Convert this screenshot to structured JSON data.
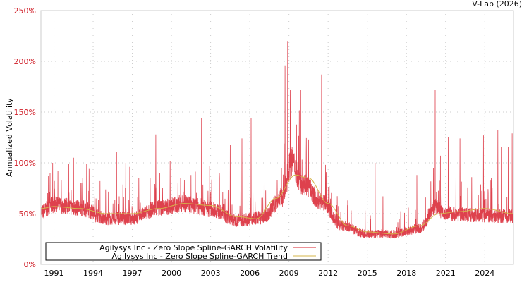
{
  "chart_data": {
    "type": "line",
    "title": "",
    "source_label": "V-Lab (2026)",
    "xlabel": "",
    "ylabel": "Annualized Volatility",
    "xlim": [
      1990.0,
      2026.2
    ],
    "ylim": [
      0,
      250
    ],
    "x_ticks": [
      "1991",
      "1994",
      "1997",
      "2000",
      "2003",
      "2006",
      "2009",
      "2012",
      "2015",
      "2018",
      "2021",
      "2024"
    ],
    "y_ticks": [
      0,
      50,
      100,
      150,
      200,
      250
    ],
    "y_tick_labels": [
      "0%",
      "50%",
      "100%",
      "150%",
      "200%",
      "250%"
    ],
    "grid": true,
    "legend_position": "bottom-left",
    "series": [
      {
        "name": "Agilysys Inc - Zero Slope Spline-GARCH Volatility",
        "color": "#d8202e",
        "baseline": [
          [
            1990.0,
            50
          ],
          [
            1991.0,
            57
          ],
          [
            1993.0,
            54
          ],
          [
            1995.0,
            44
          ],
          [
            1997.0,
            44
          ],
          [
            1999.0,
            54
          ],
          [
            2001.0,
            58
          ],
          [
            2003.0,
            53
          ],
          [
            2005.0,
            42
          ],
          [
            2007.0,
            45
          ],
          [
            2008.5,
            64
          ],
          [
            2009.2,
            98
          ],
          [
            2010.0,
            78
          ],
          [
            2011.5,
            60
          ],
          [
            2013.0,
            37
          ],
          [
            2015.0,
            29
          ],
          [
            2017.0,
            29
          ],
          [
            2019.0,
            34
          ],
          [
            2020.2,
            55
          ],
          [
            2021.0,
            49
          ],
          [
            2023.0,
            47
          ],
          [
            2026.2,
            46
          ]
        ],
        "spikes": [
          [
            1990.7,
            90
          ],
          [
            1990.9,
            100
          ],
          [
            1991.3,
            92
          ],
          [
            1992.1,
            85
          ],
          [
            1992.5,
            105
          ],
          [
            1993.2,
            85
          ],
          [
            1993.5,
            99
          ],
          [
            1995.8,
            111
          ],
          [
            1996.5,
            100
          ],
          [
            1996.8,
            96
          ],
          [
            1997.5,
            85
          ],
          [
            1998.8,
            128
          ],
          [
            1999.1,
            90
          ],
          [
            2000.5,
            80
          ],
          [
            2001.5,
            88
          ],
          [
            2002.3,
            144
          ],
          [
            2002.9,
            97
          ],
          [
            2003.1,
            115
          ],
          [
            2004.5,
            118
          ],
          [
            2005.4,
            124
          ],
          [
            2006.1,
            144
          ],
          [
            2007.1,
            114
          ],
          [
            2008.7,
            196
          ],
          [
            2008.9,
            220
          ],
          [
            2009.1,
            172
          ],
          [
            2009.9,
            172
          ],
          [
            2010.5,
            123
          ],
          [
            2011.5,
            187
          ],
          [
            2011.8,
            98
          ],
          [
            2013.5,
            63
          ],
          [
            2015.6,
            100
          ],
          [
            2016.2,
            67
          ],
          [
            2018.8,
            88
          ],
          [
            2020.2,
            172
          ],
          [
            2020.6,
            107
          ],
          [
            2021.2,
            125
          ],
          [
            2022.1,
            124
          ],
          [
            2023.0,
            86
          ],
          [
            2023.9,
            127
          ],
          [
            2024.5,
            85
          ],
          [
            2025.0,
            132
          ],
          [
            2025.3,
            116
          ],
          [
            2025.8,
            116
          ],
          [
            2026.1,
            129
          ]
        ]
      },
      {
        "name": "Agilysys Inc - Zero Slope Spline-GARCH Trend",
        "color": "#d4b44a",
        "points": [
          [
            1990.0,
            55
          ],
          [
            1991.0,
            57
          ],
          [
            1993.0,
            55
          ],
          [
            1995.0,
            50
          ],
          [
            1997.0,
            50
          ],
          [
            1999.0,
            55
          ],
          [
            2001.0,
            60
          ],
          [
            2003.0,
            58
          ],
          [
            2005.0,
            47
          ],
          [
            2006.5,
            45
          ],
          [
            2008.0,
            65
          ],
          [
            2009.5,
            88
          ],
          [
            2010.5,
            85
          ],
          [
            2012.0,
            60
          ],
          [
            2013.5,
            38
          ],
          [
            2015.0,
            32
          ],
          [
            2017.0,
            30
          ],
          [
            2019.0,
            38
          ],
          [
            2020.5,
            50
          ],
          [
            2022.0,
            52
          ],
          [
            2024.0,
            55
          ],
          [
            2026.2,
            50
          ]
        ]
      }
    ]
  }
}
